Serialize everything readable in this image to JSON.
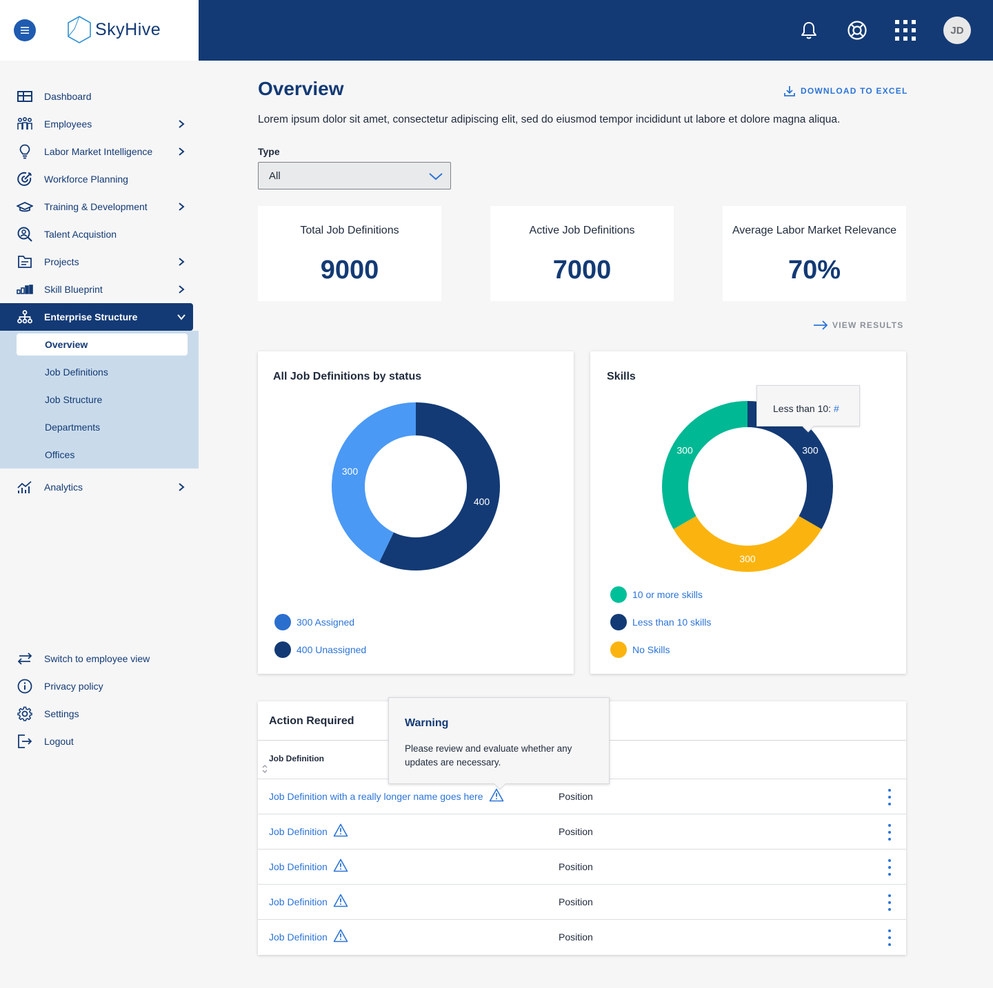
{
  "brand": {
    "name": "SkyHive"
  },
  "topbar": {
    "avatar_initials": "JD"
  },
  "sidebar": {
    "items": [
      {
        "label": "Dashboard"
      },
      {
        "label": "Employees"
      },
      {
        "label": "Labor Market Intelligence"
      },
      {
        "label": "Workforce Planning"
      },
      {
        "label": "Training & Development"
      },
      {
        "label": "Talent Acquistion"
      },
      {
        "label": "Projects"
      },
      {
        "label": "Skill Blueprint"
      },
      {
        "label": "Enterprise Structure"
      },
      {
        "label": "Analytics"
      }
    ],
    "subitems": [
      {
        "label": "Overview"
      },
      {
        "label": "Job Definitions"
      },
      {
        "label": "Job Structure"
      },
      {
        "label": "Departments"
      },
      {
        "label": "Offices"
      }
    ],
    "footer": [
      {
        "label": "Switch to employee view"
      },
      {
        "label": "Privacy policy"
      },
      {
        "label": "Settings"
      },
      {
        "label": "Logout"
      }
    ]
  },
  "main": {
    "title": "Overview",
    "download_label": "DOWNLOAD TO EXCEL",
    "description": "Lorem ipsum dolor sit amet, consectetur adipiscing elit, sed do eiusmod tempor incididunt ut labore et dolore magna aliqua.",
    "type_label": "Type",
    "type_value": "All",
    "stats": [
      {
        "label": "Total Job Definitions",
        "value": "9000"
      },
      {
        "label": "Active Job Definitions",
        "value": "7000"
      },
      {
        "label": "Average Labor Market Relevance",
        "value": "70%"
      }
    ],
    "view_results": "VIEW RESULTS"
  },
  "chart_data": [
    {
      "type": "pie",
      "title": "All Job Definitions by status",
      "slices": [
        {
          "name": "Unassigned",
          "value": 400,
          "label": "400",
          "color": "#133a75"
        },
        {
          "name": "Assigned",
          "value": 300,
          "label": "300",
          "color": "#4a99f5"
        }
      ],
      "legend": [
        {
          "label": "300 Assigned",
          "color": "#2b6fce"
        },
        {
          "label": "400 Unassigned",
          "color": "#133a75"
        }
      ]
    },
    {
      "type": "pie",
      "title": "Skills",
      "slices": [
        {
          "name": "Less than 10 skills",
          "value": 300,
          "label": "300",
          "color": "#133a75"
        },
        {
          "name": "No Skills",
          "value": 300,
          "label": "300",
          "color": "#fbb40f"
        },
        {
          "name": "10 or more skills",
          "value": 300,
          "label": "300",
          "color": "#00b894"
        }
      ],
      "legend": [
        {
          "label": "10 or more skills",
          "color": "#00c09a"
        },
        {
          "label": "Less than 10 skills",
          "color": "#133a75"
        },
        {
          "label": "No Skills",
          "color": "#fbb40f"
        }
      ],
      "tooltip": {
        "label": "Less than 10:",
        "value": "#"
      }
    }
  ],
  "action_required": {
    "title": "Action Required",
    "column_header": "Job Definition",
    "rows": [
      {
        "name": "Job Definition with a really longer name goes here",
        "type": "Position"
      },
      {
        "name": "Job Definition",
        "type": "Position"
      },
      {
        "name": "Job Definition",
        "type": "Position"
      },
      {
        "name": "Job Definition",
        "type": "Position"
      },
      {
        "name": "Job Definition",
        "type": "Position"
      }
    ],
    "warning": {
      "title": "Warning",
      "body": "Please review and evaluate whether any updates are necessary."
    }
  }
}
